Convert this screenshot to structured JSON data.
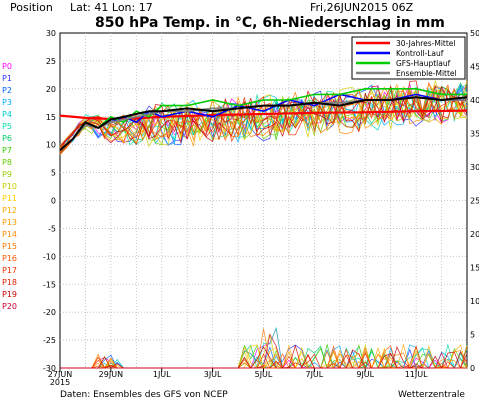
{
  "header": {
    "position_label": "Position",
    "coords": "Lat: 41  Lon: 17",
    "date": "Fri,26JUN2015  06Z",
    "title": "850 hPa Temp. in °C, 6h-Niederschlag in mm"
  },
  "footer": {
    "source": "Daten: Ensembles des GFS von NCEP",
    "brand": "Wetterzentrale"
  },
  "chart_data": {
    "type": "line",
    "title": "850 hPa Temp. in °C, 6h-Niederschlag in mm",
    "x_range_hours": [
      0,
      384
    ],
    "x_ticks": [
      {
        "h": 0,
        "label": "27JUN"
      },
      {
        "h": 48,
        "label": "29JUN"
      },
      {
        "h": 96,
        "label": "1JUL"
      },
      {
        "h": 144,
        "label": "3JUL"
      },
      {
        "h": 192,
        "label": "5JUL"
      },
      {
        "h": 240,
        "label": "7JUL"
      },
      {
        "h": 288,
        "label": "9JUL"
      },
      {
        "h": 336,
        "label": "11JUL"
      }
    ],
    "x_year_label": "2015",
    "y_left": {
      "min": -30,
      "max": 30,
      "ticks": [
        30,
        25,
        20,
        15,
        10,
        5,
        0,
        -5,
        -10,
        -15,
        -20,
        -25,
        -30
      ]
    },
    "y_right": {
      "min": 0,
      "max": 50,
      "ticks": [
        50,
        45,
        40,
        35,
        30,
        25,
        20,
        15,
        10,
        5,
        0
      ]
    },
    "grid": true,
    "legend": {
      "placement": "top-right",
      "entries": [
        {
          "name": "30-Jahres-Mittel",
          "color": "#ff0000"
        },
        {
          "name": "Kontroll-Lauf",
          "color": "#0000ff"
        },
        {
          "name": "GFS-Hauptlauf",
          "color": "#00cc00"
        },
        {
          "name": "Ensemble-Mittel",
          "color": "#808080"
        }
      ]
    },
    "member_labels": [
      "P0",
      "P1",
      "P2",
      "P3",
      "P4",
      "P5",
      "P6",
      "P7",
      "P8",
      "P9",
      "P10",
      "P11",
      "P12",
      "P13",
      "P14",
      "P15",
      "P16",
      "P17",
      "P18",
      "P19",
      "P20"
    ],
    "member_colors": [
      "#ff00ff",
      "#3333ff",
      "#0066ff",
      "#00aaff",
      "#00cccc",
      "#00ddaa",
      "#00cc66",
      "#33cc00",
      "#66cc00",
      "#99cc00",
      "#cccc00",
      "#ffcc00",
      "#ffaa00",
      "#ff9900",
      "#ff8800",
      "#ff7700",
      "#ff5500",
      "#ee3300",
      "#dd2200",
      "#cc0000",
      "#cc0033"
    ],
    "series": [
      {
        "name": "30-Jahres-Mittel",
        "x": [
          0,
          24,
          48,
          72,
          96,
          144,
          192,
          240,
          288,
          336,
          384
        ],
        "y": [
          15.2,
          14.8,
          14.6,
          14.7,
          15.0,
          15.3,
          15.5,
          15.7,
          15.8,
          16.0,
          16.1
        ]
      },
      {
        "name": "Kontroll-Lauf",
        "x": [
          0,
          12,
          24,
          36,
          48,
          60,
          72,
          84,
          96,
          120,
          144,
          168,
          192,
          216,
          240,
          264,
          288,
          312,
          336,
          360,
          384
        ],
        "y": [
          9,
          11,
          14,
          13,
          14,
          15,
          14,
          16,
          15,
          16,
          15,
          17,
          16,
          18,
          17,
          19,
          18,
          18,
          19,
          18,
          18
        ]
      },
      {
        "name": "GFS-Hauptlauf",
        "x": [
          0,
          12,
          24,
          36,
          48,
          60,
          72,
          84,
          96,
          120,
          144,
          168,
          192,
          216,
          240,
          264,
          288,
          312,
          336,
          360,
          384
        ],
        "y": [
          9,
          11,
          14,
          13,
          15,
          14,
          16,
          15,
          17,
          17,
          18,
          17,
          18,
          18,
          19,
          19,
          20,
          20,
          20,
          19,
          19
        ]
      },
      {
        "name": "Ensemble-Mittel",
        "x": [
          0,
          12,
          24,
          36,
          48,
          60,
          72,
          84,
          96,
          120,
          144,
          168,
          192,
          216,
          240,
          264,
          288,
          312,
          336,
          360,
          384
        ],
        "y": [
          9,
          11,
          13.5,
          13,
          14,
          14.5,
          15,
          15.5,
          16,
          16,
          16.5,
          16.5,
          17,
          17,
          17.5,
          17.5,
          18,
          18,
          18.5,
          18,
          18
        ]
      },
      {
        "name": "black",
        "x": [
          0,
          12,
          24,
          36,
          48,
          60,
          72,
          84,
          96,
          120,
          144,
          168,
          192,
          216,
          240,
          264,
          288,
          312,
          336,
          360,
          384
        ],
        "y": [
          9,
          11,
          14,
          13,
          14.5,
          15,
          15.5,
          16,
          16,
          16.5,
          16,
          16.5,
          17,
          17,
          17.5,
          17,
          18,
          18,
          18.5,
          18,
          18.5
        ]
      }
    ]
  }
}
